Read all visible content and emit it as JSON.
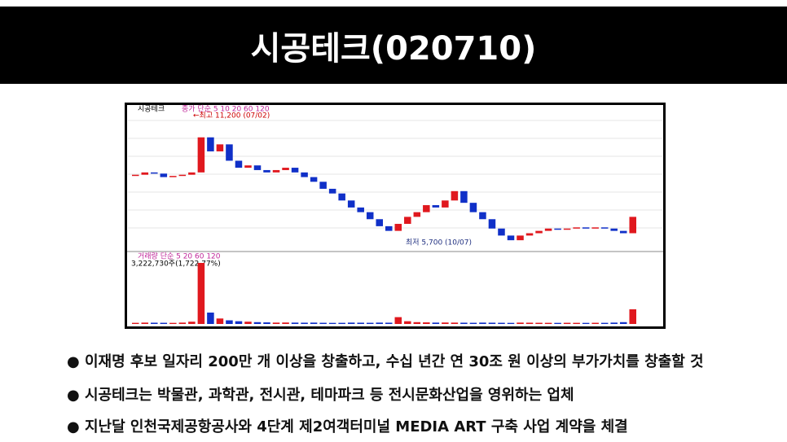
{
  "header": {
    "title": "시공테크(020710)"
  },
  "chart_data": {
    "type": "candlestick",
    "stock_label": "시공테크",
    "price_legend": "종가 단순 5 10 20 60 120",
    "high": {
      "value": 11200,
      "label": "←최고 11,200 (07/02)"
    },
    "low": {
      "value": 5700,
      "label": "최저 5,700 (10/07)"
    },
    "closes": [
      8600,
      8700,
      8650,
      8500,
      8550,
      8600,
      8700,
      10200,
      9600,
      9900,
      9200,
      8900,
      9000,
      8800,
      8700,
      8800,
      8900,
      8700,
      8500,
      8300,
      8000,
      7800,
      7500,
      7200,
      7000,
      6700,
      6400,
      6200,
      6500,
      6800,
      7000,
      7300,
      7200,
      7500,
      7900,
      7400,
      7000,
      6700,
      6300,
      6000,
      5800,
      6000,
      6100,
      6200,
      6300,
      6250,
      6300,
      6350,
      6300,
      6350,
      6300,
      6200,
      6100,
      6800
    ],
    "volume_legend": "거래량 단순 5 20 60 120",
    "volume_label": "3,222,730주(1,722.77%)",
    "volumes": [
      250000,
      300000,
      280000,
      260000,
      240000,
      300000,
      500000,
      13400000,
      2500000,
      1200000,
      800000,
      600000,
      500000,
      400000,
      350000,
      300000,
      320000,
      300000,
      280000,
      300000,
      260000,
      240000,
      250000,
      300000,
      280000,
      260000,
      300000,
      280000,
      1500000,
      600000,
      400000,
      350000,
      300000,
      320000,
      300000,
      280000,
      260000,
      300000,
      280000,
      260000,
      240000,
      300000,
      280000,
      260000,
      250000,
      240000,
      260000,
      250000,
      240000,
      260000,
      250000,
      300000,
      400000,
      3222730
    ],
    "up_color": "#e0181e",
    "down_color": "#1030c8"
  },
  "bullets": [
    "● 이재명 후보 일자리 200만 개 이상을 창출하고, 수십 년간 연 30조 원 이상의 부가가치를 창출할 것",
    "● 시공테크는 박물관, 과학관, 전시관, 테마파크 등 전시문화산업을 영위하는 업체",
    "● 지난달 인천국제공항공사와 4단계 제2여객터미널 MEDIA ART 구축 사업 계약을 체결"
  ]
}
